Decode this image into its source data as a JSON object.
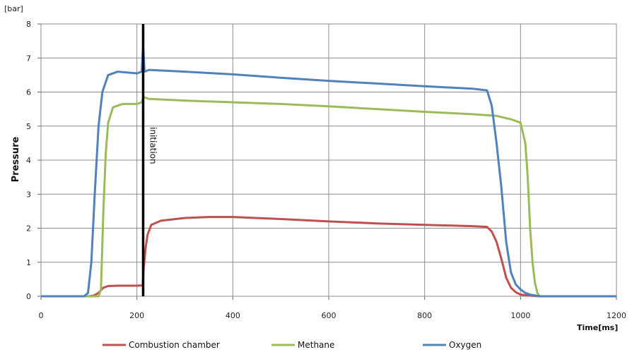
{
  "chart_data": {
    "type": "line",
    "title": "",
    "xlabel": "Time[ms]",
    "ylabel": "Pressure",
    "y_unit": "[bar]",
    "xlim": [
      0,
      1200
    ],
    "ylim": [
      0,
      8
    ],
    "x_ticks": [
      "0",
      "200",
      "400",
      "600",
      "800",
      "1000",
      "1200"
    ],
    "y_ticks": [
      "0",
      "1",
      "2",
      "3",
      "4",
      "5",
      "6",
      "7",
      "8"
    ],
    "grid": true,
    "legend_position": "bottom",
    "annotations": [
      {
        "text": "initiation",
        "x": 213
      }
    ],
    "series": [
      {
        "name": "Combustion chamber",
        "color": "#c0504d",
        "points": [
          [
            0,
            0
          ],
          [
            100,
            0.0
          ],
          [
            110,
            0.02
          ],
          [
            120,
            0.1
          ],
          [
            130,
            0.25
          ],
          [
            140,
            0.3
          ],
          [
            160,
            0.31
          ],
          [
            200,
            0.31
          ],
          [
            212,
            0.32
          ],
          [
            214,
            0.8
          ],
          [
            218,
            1.4
          ],
          [
            222,
            1.8
          ],
          [
            230,
            2.1
          ],
          [
            250,
            2.22
          ],
          [
            300,
            2.3
          ],
          [
            350,
            2.33
          ],
          [
            400,
            2.33
          ],
          [
            500,
            2.27
          ],
          [
            600,
            2.2
          ],
          [
            700,
            2.14
          ],
          [
            800,
            2.1
          ],
          [
            900,
            2.06
          ],
          [
            930,
            2.04
          ],
          [
            940,
            1.9
          ],
          [
            950,
            1.6
          ],
          [
            960,
            1.1
          ],
          [
            970,
            0.55
          ],
          [
            980,
            0.25
          ],
          [
            990,
            0.12
          ],
          [
            1000,
            0.05
          ],
          [
            1020,
            0.02
          ],
          [
            1040,
            0.0
          ],
          [
            1200,
            0.0
          ]
        ]
      },
      {
        "name": "Methane",
        "color": "#9bbb59",
        "points": [
          [
            0,
            0
          ],
          [
            120,
            0.0
          ],
          [
            125,
            0.2
          ],
          [
            130,
            2.5
          ],
          [
            135,
            4.2
          ],
          [
            140,
            5.1
          ],
          [
            150,
            5.55
          ],
          [
            170,
            5.65
          ],
          [
            200,
            5.65
          ],
          [
            210,
            5.7
          ],
          [
            214,
            5.85
          ],
          [
            225,
            5.8
          ],
          [
            300,
            5.75
          ],
          [
            400,
            5.7
          ],
          [
            500,
            5.65
          ],
          [
            600,
            5.58
          ],
          [
            700,
            5.5
          ],
          [
            800,
            5.42
          ],
          [
            900,
            5.35
          ],
          [
            950,
            5.3
          ],
          [
            980,
            5.2
          ],
          [
            1000,
            5.1
          ],
          [
            1010,
            4.5
          ],
          [
            1015,
            3.5
          ],
          [
            1020,
            2.0
          ],
          [
            1025,
            1.0
          ],
          [
            1030,
            0.4
          ],
          [
            1035,
            0.1
          ],
          [
            1040,
            0.0
          ],
          [
            1200,
            0.0
          ]
        ]
      },
      {
        "name": "Oxygen",
        "color": "#4f81bd",
        "points": [
          [
            0,
            0
          ],
          [
            90,
            0.0
          ],
          [
            98,
            0.1
          ],
          [
            105,
            1.0
          ],
          [
            112,
            3.0
          ],
          [
            120,
            5.0
          ],
          [
            128,
            6.0
          ],
          [
            140,
            6.5
          ],
          [
            160,
            6.6
          ],
          [
            200,
            6.55
          ],
          [
            210,
            6.6
          ],
          [
            213,
            7.35
          ],
          [
            216,
            6.6
          ],
          [
            225,
            6.65
          ],
          [
            300,
            6.6
          ],
          [
            400,
            6.52
          ],
          [
            500,
            6.42
          ],
          [
            600,
            6.33
          ],
          [
            700,
            6.25
          ],
          [
            800,
            6.17
          ],
          [
            900,
            6.1
          ],
          [
            930,
            6.05
          ],
          [
            940,
            5.6
          ],
          [
            950,
            4.5
          ],
          [
            960,
            3.2
          ],
          [
            970,
            1.6
          ],
          [
            980,
            0.7
          ],
          [
            990,
            0.35
          ],
          [
            1000,
            0.2
          ],
          [
            1010,
            0.1
          ],
          [
            1020,
            0.05
          ],
          [
            1040,
            0.0
          ],
          [
            1200,
            0.0
          ]
        ]
      }
    ]
  }
}
